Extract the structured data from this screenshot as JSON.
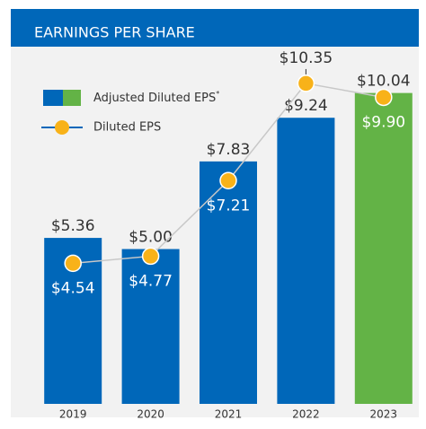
{
  "chart_data": {
    "type": "bar_line",
    "title": "EARNINGS PER SHARE",
    "categories": [
      "2019",
      "2020",
      "2021",
      "2022",
      "2023"
    ],
    "ylim": [
      0,
      13
    ],
    "legend_note": "*",
    "series": [
      {
        "name": "Adjusted Diluted EPS",
        "colors": [
          "#0067b9",
          "#0067b9",
          "#0067b9",
          "#0067b9",
          "#63b346"
        ],
        "values": [
          5.36,
          5.0,
          7.83,
          9.24,
          10.04
        ],
        "value_labels": [
          "$5.36",
          "$5.00",
          "$7.83",
          "$9.24",
          "$10.04"
        ]
      },
      {
        "name": "Diluted EPS",
        "color": "#f8b219",
        "line_color": "#c8c8c8",
        "values": [
          4.54,
          4.77,
          7.21,
          10.35,
          9.9
        ],
        "value_labels": [
          "$4.54",
          "$4.77",
          "$7.21",
          "$10.35",
          "$9.90"
        ]
      }
    ]
  }
}
